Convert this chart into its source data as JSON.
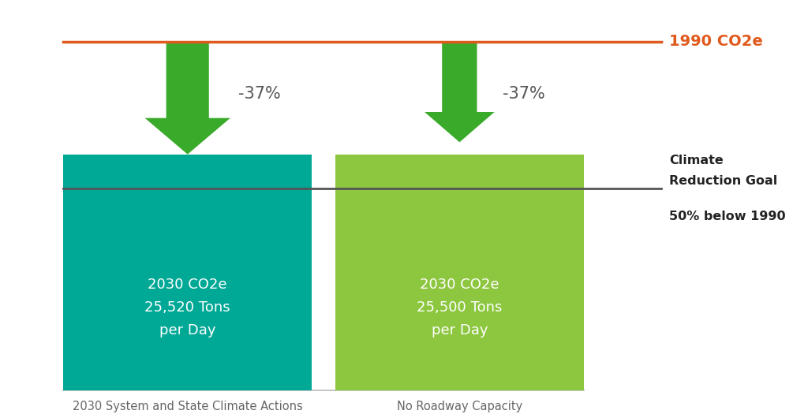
{
  "bar1_color": "#00A896",
  "bar2_color": "#8DC63F",
  "arrow_color": "#3aaa2a",
  "ref_line_color": "#E05A1E",
  "goal_line_color": "#555555",
  "background_color": "#ffffff",
  "bar1_label": "2030 System and State Climate Actions",
  "bar2_label": "No Roadway Capacity",
  "bar1_text": "2030 CO2e\n25,520 Tons\nper Day",
  "bar2_text": "2030 CO2e\n25,500 Tons\nper Day",
  "bar1_pct": "-37%",
  "bar2_pct": "-37%",
  "ref_label": "1990 CO2e",
  "goal_label_line1": "Climate",
  "goal_label_line2": "Reduction Goal",
  "goal_label_line3": "50% below 1990",
  "text_color_bars": "#ffffff",
  "text_color_pct": "#555555",
  "text_color_ref": "#E05A1E",
  "text_color_goal_bold": "#222222",
  "text_color_goal_normal": "#222222",
  "text_color_xlabels": "#666666"
}
